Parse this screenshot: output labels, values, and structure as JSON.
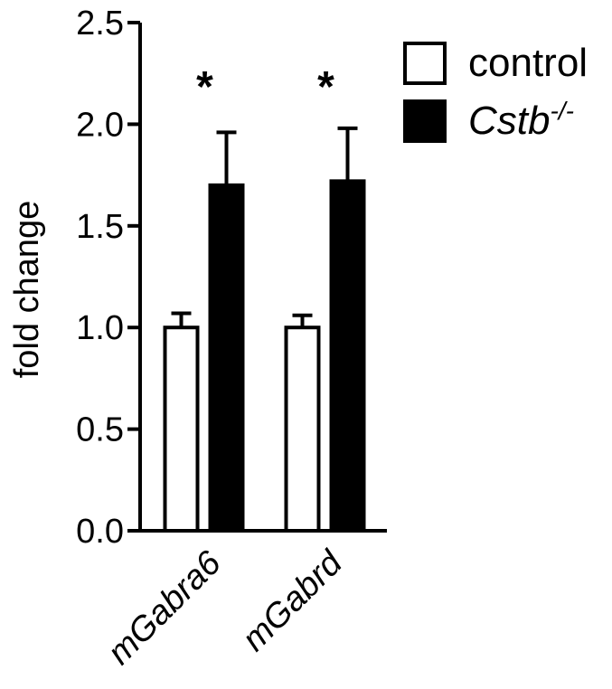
{
  "chart_data": {
    "type": "bar",
    "ylabel": "fold change",
    "xlabel": "",
    "ylim": [
      0,
      2.5
    ],
    "yticks": [
      "0.0",
      "0.5",
      "1.0",
      "1.5",
      "2.0",
      "2.5"
    ],
    "categories": [
      "mGabra6",
      "mGabrd"
    ],
    "series": [
      {
        "name": "control",
        "values": [
          1.0,
          1.0
        ],
        "errors": [
          0.07,
          0.06
        ],
        "color": "#ffffff",
        "stroke": "#000000"
      },
      {
        "name": "Cstb",
        "name_superscript": "-/-",
        "values": [
          1.7,
          1.72
        ],
        "errors": [
          0.26,
          0.26
        ],
        "color": "#000000",
        "stroke": "#000000"
      }
    ],
    "annotations": [
      "*",
      "*"
    ],
    "legend": {
      "placement": "top-right"
    },
    "grid": false
  }
}
